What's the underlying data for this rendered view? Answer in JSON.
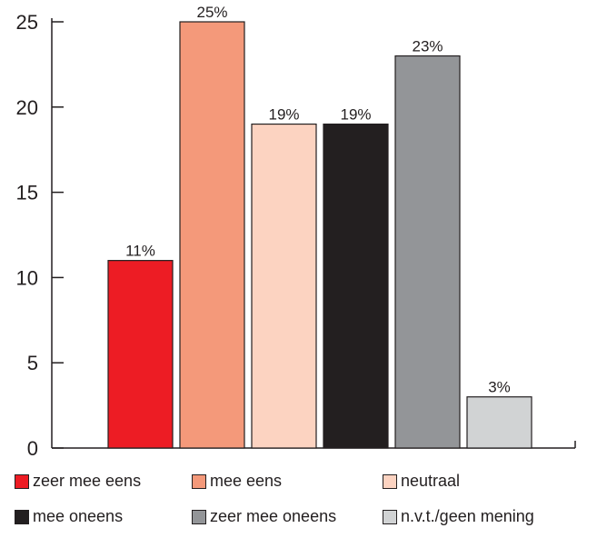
{
  "chart_data": {
    "type": "bar",
    "categories": [
      "zeer mee eens",
      "mee eens",
      "neutraal",
      "mee oneens",
      "zeer mee oneens",
      "n.v.t./geen mening"
    ],
    "values": [
      11,
      25,
      19,
      19,
      23,
      3
    ],
    "data_labels": [
      "11%",
      "25%",
      "19%",
      "19%",
      "23%",
      "3%"
    ],
    "colors": [
      "#ed1c24",
      "#f4997a",
      "#fcd3c1",
      "#231f20",
      "#939598",
      "#d1d3d4"
    ],
    "yticks": [
      0,
      5,
      10,
      15,
      20,
      25
    ],
    "ylim": [
      0,
      25
    ],
    "grid": false,
    "legend_position": "bottom"
  }
}
